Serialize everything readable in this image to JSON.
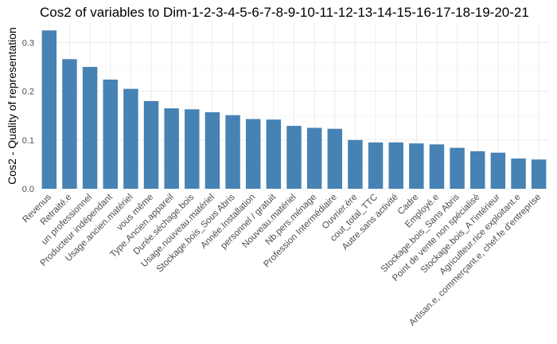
{
  "chart_data": {
    "type": "bar",
    "title": "Cos2 of variables to Dim-1-2-3-4-5-6-7-8-9-10-11-12-13-14-15-16-17-18-19-20-21",
    "xlabel": "",
    "ylabel": "Cos2 - Quality of representation",
    "ylim": [
      0,
      0.34
    ],
    "yticks": [
      "0.0",
      "0.1",
      "0.2",
      "0.3"
    ],
    "grid": true,
    "bar_color": "#4682b4",
    "categories": [
      "Revenus",
      "Retraité.e",
      "un professionnel",
      "Producteur indépendant",
      "Usage.ancien.matériel",
      "vous même",
      "Type.Ancien.appareil",
      "Durée.séchage.bois",
      "Usage.nouveau.matériel",
      "Stockage.bois_Sous Abris",
      "Année.Installation",
      "personnel / gratuit",
      "Nouveau.matériel",
      "Nb.pers.ménage",
      "Profession Intermédiaire",
      "Ouvrier.ère",
      "cout_total_TTC",
      "Autre.sans activité",
      "Cadre",
      "Employé.e",
      "Stockage.bois_Sans Abris",
      "Point de vente non spécialisé",
      "Stockage.bois_A l'intérieur",
      "Agriculteur.rice exploitant.e",
      "Artisan.e, commerçant.e, chef.fe d'entreprise"
    ],
    "values": [
      0.325,
      0.266,
      0.25,
      0.224,
      0.205,
      0.18,
      0.165,
      0.163,
      0.157,
      0.151,
      0.143,
      0.142,
      0.129,
      0.125,
      0.123,
      0.1,
      0.095,
      0.095,
      0.093,
      0.091,
      0.084,
      0.077,
      0.074,
      0.062,
      0.06
    ]
  }
}
